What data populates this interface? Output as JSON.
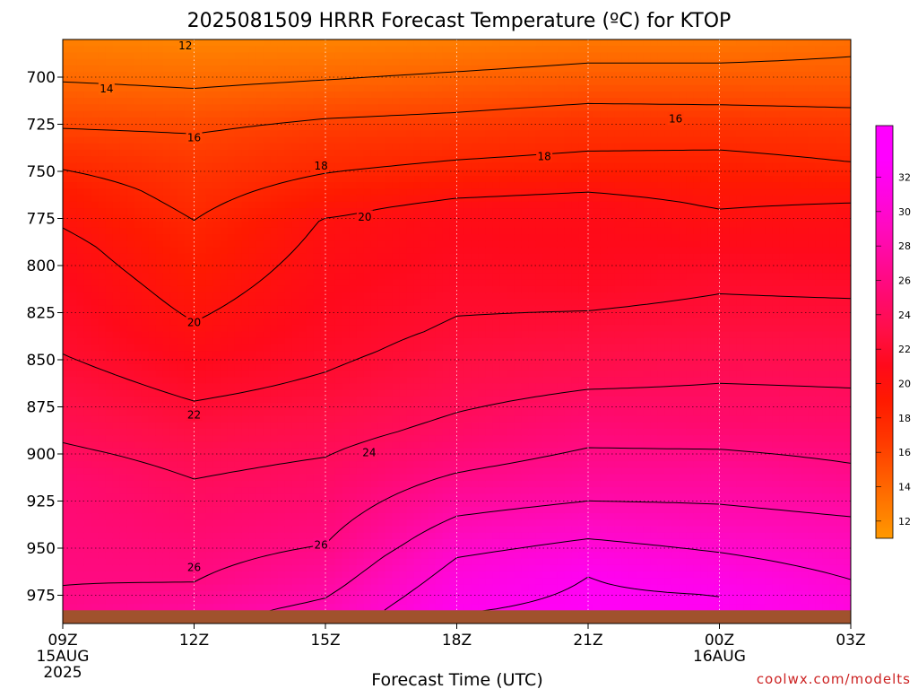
{
  "chart_data": {
    "type": "heatmap",
    "title": "2025081509 HRRR Forecast Temperature (ºC) for KTOP",
    "xlabel": "Forecast Time (UTC)",
    "ylabel": "",
    "x_ticks": [
      {
        "label": "09Z",
        "sub": [
          "15AUG",
          "2025"
        ]
      },
      {
        "label": "12Z",
        "sub": []
      },
      {
        "label": "15Z",
        "sub": []
      },
      {
        "label": "18Z",
        "sub": []
      },
      {
        "label": "21Z",
        "sub": []
      },
      {
        "label": "00Z",
        "sub": [
          "16AUG"
        ]
      },
      {
        "label": "03Z",
        "sub": []
      }
    ],
    "x_hours": [
      0,
      18
    ],
    "y_axis": {
      "unit": "hPa",
      "range": [
        680,
        990
      ],
      "inverted": true,
      "ticks": [
        700,
        725,
        750,
        775,
        800,
        825,
        850,
        875,
        900,
        925,
        950,
        975
      ]
    },
    "grid": true,
    "contour_interval": 2,
    "temperature_profiles": [
      {
        "hour": 0,
        "levels": [
          [
            680,
            12.5
          ],
          [
            700,
            13.8
          ],
          [
            725,
            15.8
          ],
          [
            760,
            19.0
          ],
          [
            790,
            20.5
          ],
          [
            812,
            21.2
          ],
          [
            847,
            22.0
          ],
          [
            884,
            23.5
          ],
          [
            914,
            25.0
          ],
          [
            970,
            26.0
          ],
          [
            985,
            26.5
          ]
        ]
      },
      {
        "hour": 3,
        "levels": [
          [
            680,
            12.2
          ],
          [
            706,
            14.0
          ],
          [
            730,
            16.0
          ],
          [
            776,
            18.0
          ],
          [
            830,
            20.0
          ],
          [
            872,
            22.0
          ],
          [
            900,
            23.5
          ],
          [
            940,
            25.0
          ],
          [
            968,
            26.0
          ],
          [
            985,
            27.5
          ]
        ]
      },
      {
        "hour": 6,
        "levels": [
          [
            680,
            12.3
          ],
          [
            704,
            14.2
          ],
          [
            727,
            16.5
          ],
          [
            751,
            18.0
          ],
          [
            776,
            20.1
          ],
          [
            845,
            21.6
          ],
          [
            868,
            22.4
          ],
          [
            897,
            23.8
          ],
          [
            925,
            25.0
          ],
          [
            948,
            26.0
          ],
          [
            970,
            27.5
          ],
          [
            983,
            28.5
          ]
        ]
      },
      {
        "hour": 9,
        "levels": [
          [
            680,
            12.6
          ],
          [
            702,
            14.4
          ],
          [
            725,
            16.6
          ],
          [
            748,
            18.3
          ],
          [
            770,
            20.6
          ],
          [
            835,
            22.2
          ],
          [
            862,
            23.2
          ],
          [
            888,
            24.5
          ],
          [
            910,
            26.0
          ],
          [
            933,
            28.0
          ],
          [
            955,
            30.0
          ],
          [
            985,
            32.0
          ]
        ]
      },
      {
        "hour": 12,
        "levels": [
          [
            680,
            13.0
          ],
          [
            700,
            14.6
          ],
          [
            722,
            16.8
          ],
          [
            745,
            18.4
          ],
          [
            767,
            20.6
          ],
          [
            810,
            21.4
          ],
          [
            838,
            22.6
          ],
          [
            860,
            23.6
          ],
          [
            880,
            25.0
          ],
          [
            905,
            26.5
          ],
          [
            925,
            28.0
          ],
          [
            945,
            30.0
          ],
          [
            965,
            32.0
          ],
          [
            985,
            32.5
          ]
        ]
      },
      {
        "hour": 15,
        "levels": [
          [
            680,
            13.0
          ],
          [
            700,
            14.6
          ],
          [
            722,
            16.7
          ],
          [
            745,
            18.5
          ],
          [
            770,
            20.0
          ],
          [
            800,
            21.5
          ],
          [
            830,
            22.5
          ],
          [
            858,
            23.8
          ],
          [
            885,
            25.0
          ],
          [
            910,
            27.0
          ],
          [
            935,
            28.5
          ],
          [
            958,
            30.5
          ],
          [
            975,
            32.0
          ],
          [
            985,
            32.0
          ]
        ]
      },
      {
        "hour": 18,
        "levels": [
          [
            680,
            13.5
          ],
          [
            700,
            14.6
          ],
          [
            722,
            16.5
          ],
          [
            745,
            18.0
          ],
          [
            770,
            20.3
          ],
          [
            800,
            21.3
          ],
          [
            830,
            22.5
          ],
          [
            860,
            23.8
          ],
          [
            880,
            24.6
          ],
          [
            905,
            26.0
          ],
          [
            925,
            27.5
          ],
          [
            950,
            29.0
          ],
          [
            975,
            30.5
          ],
          [
            985,
            31.0
          ]
        ]
      }
    ],
    "contour_labels": [
      {
        "text": "12",
        "hour": 2.8,
        "p": 683
      },
      {
        "text": "14",
        "hour": 1.0,
        "p": 706
      },
      {
        "text": "16",
        "hour": 3.0,
        "p": 732
      },
      {
        "text": "16",
        "hour": 14.0,
        "p": 722
      },
      {
        "text": "18",
        "hour": 5.9,
        "p": 747
      },
      {
        "text": "18",
        "hour": 11.0,
        "p": 742
      },
      {
        "text": "20",
        "hour": 6.9,
        "p": 774
      },
      {
        "text": "20",
        "hour": 3.0,
        "p": 830
      },
      {
        "text": "22",
        "hour": 3.0,
        "p": 879
      },
      {
        "text": "24",
        "hour": 7.0,
        "p": 899
      },
      {
        "text": "26",
        "hour": 5.9,
        "p": 948
      },
      {
        "text": "26",
        "hour": 3.0,
        "p": 960
      }
    ],
    "colorbar": {
      "ticks": [
        12,
        14,
        16,
        18,
        20,
        22,
        24,
        26,
        28,
        30,
        32
      ],
      "range": [
        11,
        35
      ],
      "colors": [
        {
          "v": 11,
          "c": "#ff9900"
        },
        {
          "v": 13,
          "c": "#ff7700"
        },
        {
          "v": 15,
          "c": "#ff5500"
        },
        {
          "v": 17,
          "c": "#ff3300"
        },
        {
          "v": 19,
          "c": "#ff1a00"
        },
        {
          "v": 21,
          "c": "#ff0a1a"
        },
        {
          "v": 23,
          "c": "#ff0f46"
        },
        {
          "v": 25,
          "c": "#ff0a6e"
        },
        {
          "v": 27,
          "c": "#ff0a96"
        },
        {
          "v": 29,
          "c": "#ff0abe"
        },
        {
          "v": 31,
          "c": "#ff05e1"
        },
        {
          "v": 33,
          "c": "#ff00ff"
        },
        {
          "v": 35,
          "c": "#ff00ff"
        }
      ]
    },
    "ground_color": "#a0522d",
    "credit": "coolwx.com/modelts"
  }
}
